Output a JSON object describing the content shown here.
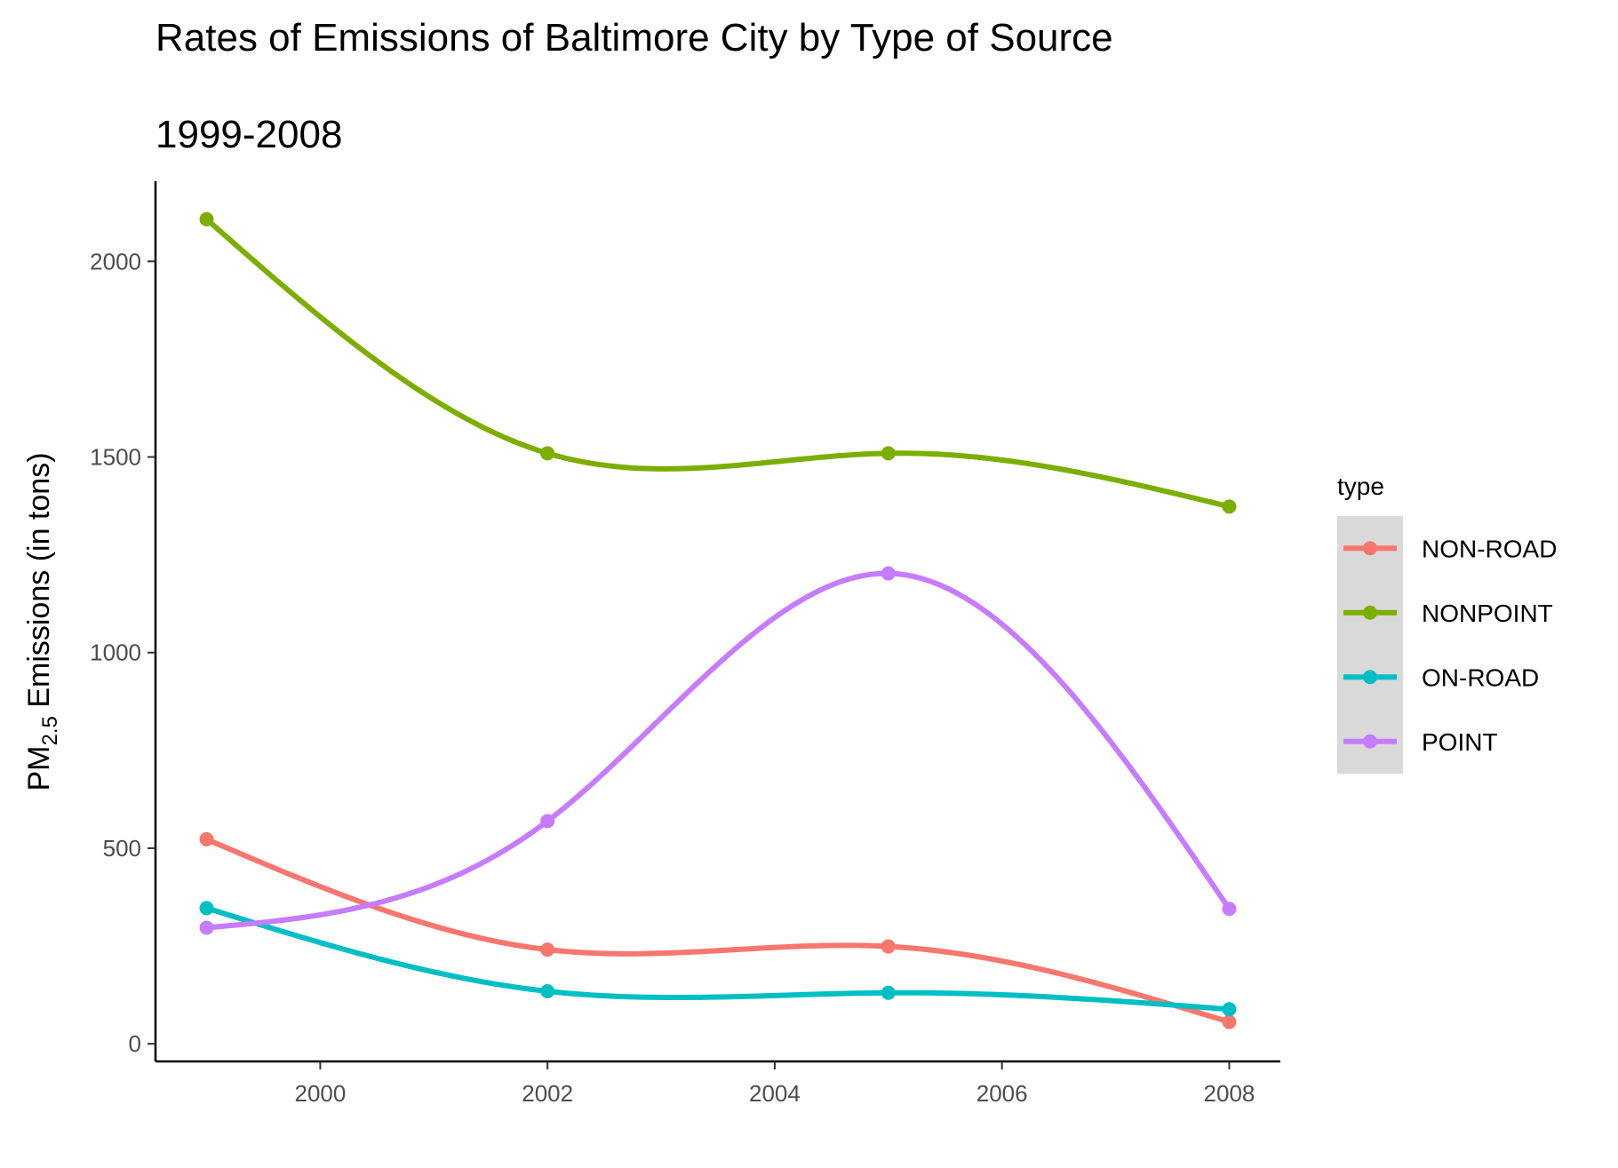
{
  "chart_data": {
    "type": "line",
    "title": "Rates of Emissions of Baltimore City by Type of Source",
    "subtitle": "1999-2008",
    "xlabel": "",
    "ylabel": {
      "prefix": "PM",
      "subscript": "2.5",
      "suffix": " Emissions (in tons)"
    },
    "x": [
      1999,
      2002,
      2005,
      2008
    ],
    "xlim": [
      1998.55,
      2008.45
    ],
    "ylim": [
      -45,
      2205
    ],
    "x_ticks": [
      2000,
      2002,
      2004,
      2006,
      2008
    ],
    "y_ticks": [
      0,
      500,
      1000,
      1500,
      2000
    ],
    "grid": false,
    "smoothed": true,
    "legend": {
      "title": "type",
      "position": "right"
    },
    "series": [
      {
        "name": "NON-ROAD",
        "color": "#F8766D",
        "values": [
          522.9,
          240.8,
          248.9,
          55.8
        ]
      },
      {
        "name": "NONPOINT",
        "color": "#7CAE00",
        "values": [
          2107.6,
          1509.5,
          1509.5,
          1373.2
        ]
      },
      {
        "name": "ON-ROAD",
        "color": "#00BFC4",
        "values": [
          346.8,
          134.3,
          130.4,
          88.3
        ]
      },
      {
        "name": "POINT",
        "color": "#C77CFF",
        "values": [
          296.8,
          569.3,
          1202.5,
          344.98
        ]
      }
    ]
  }
}
